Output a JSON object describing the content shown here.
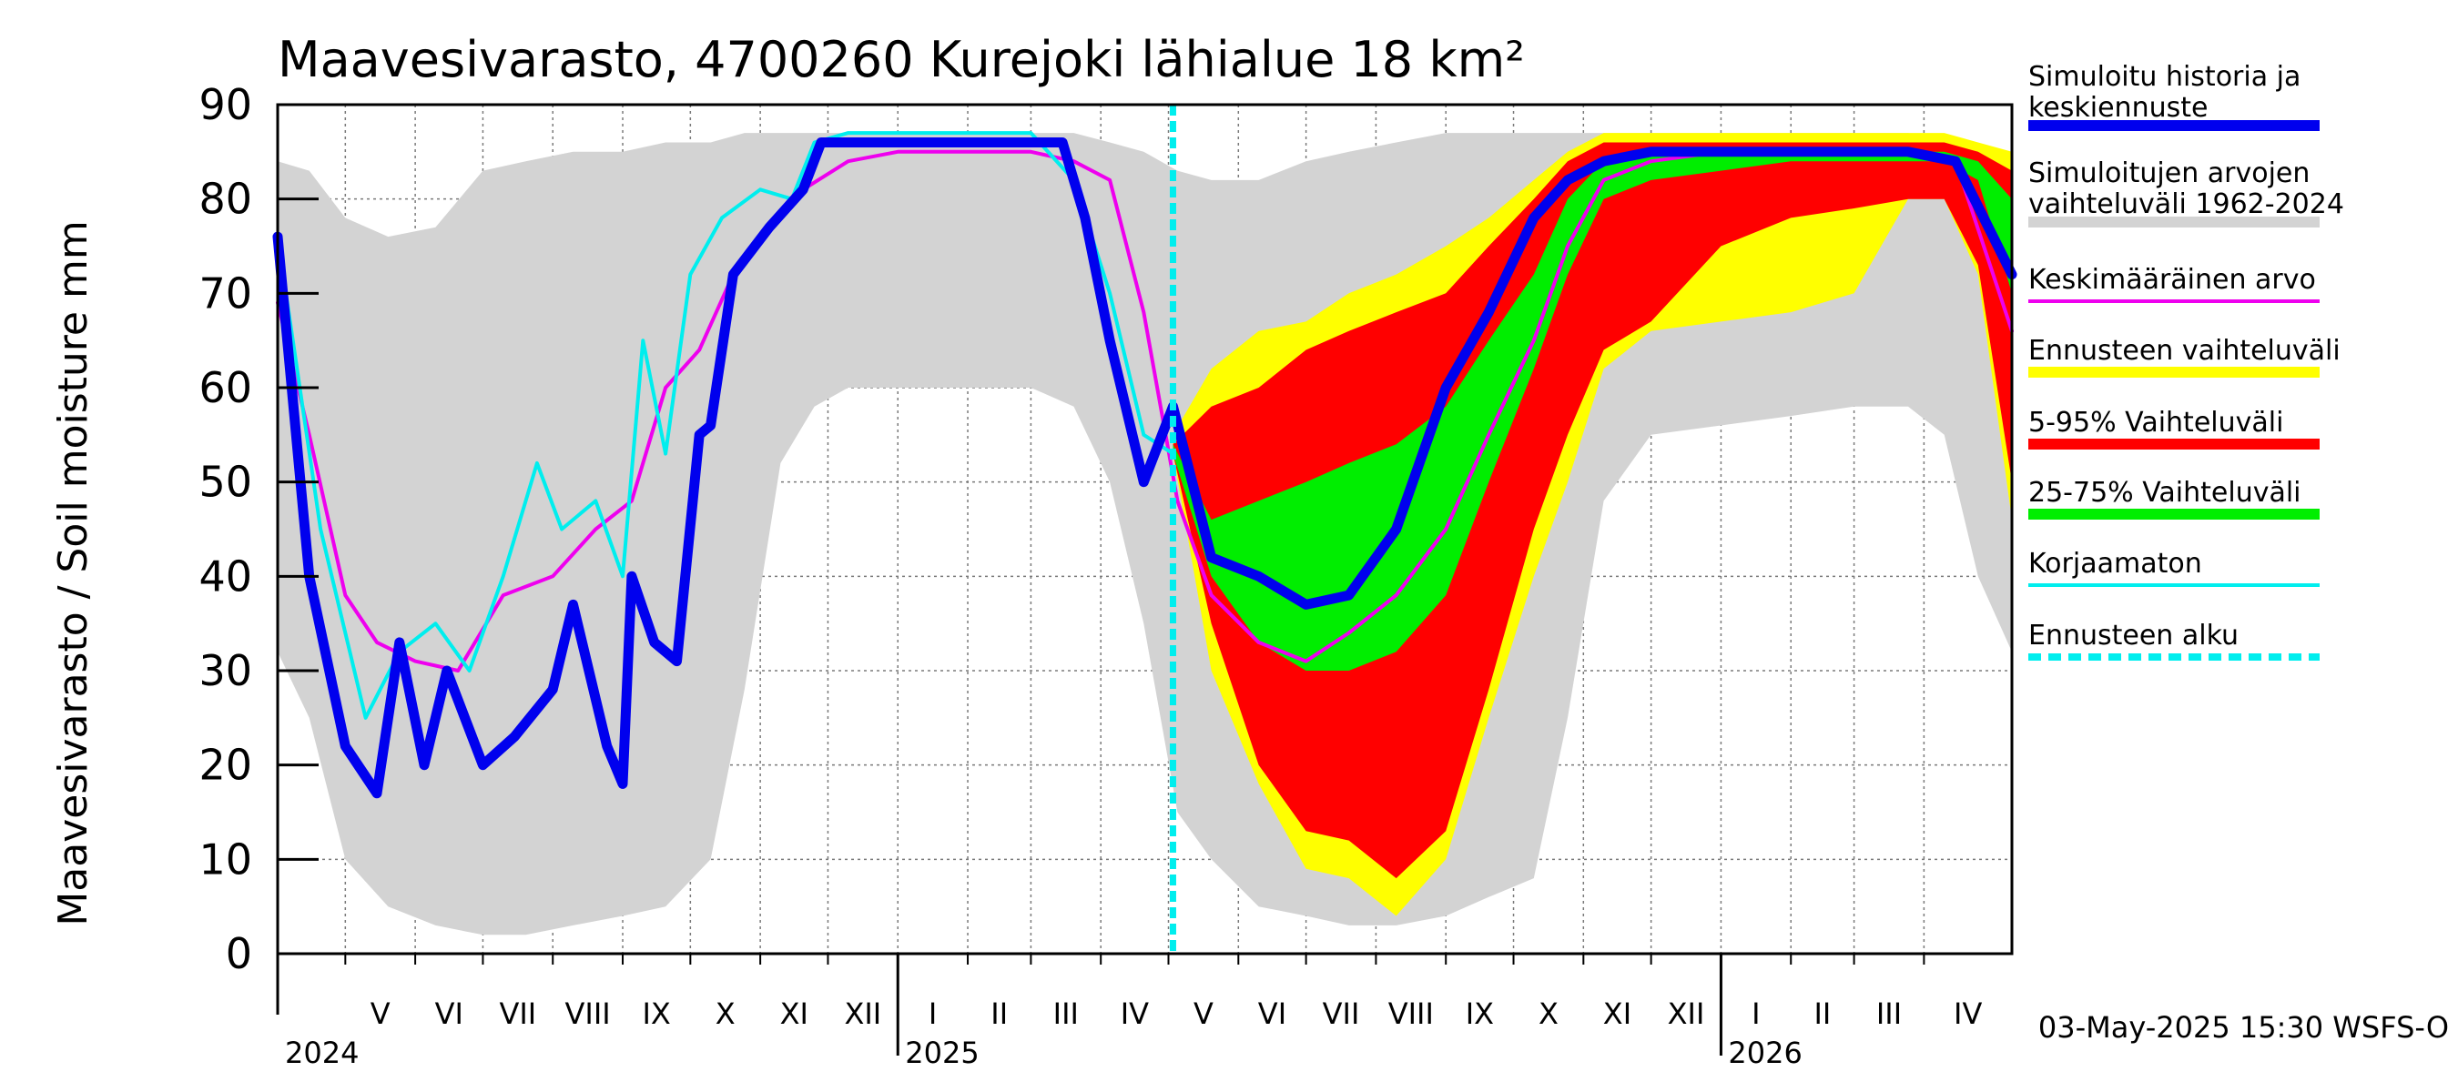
{
  "chart_data": {
    "type": "area",
    "title": "Maavesivarasto, 4700260 Kurejoki lähialue 18 km²",
    "ylabel": "Maavesivarasto / Soil moisture   mm",
    "ylim": [
      0,
      90
    ],
    "yticks": [
      0,
      10,
      20,
      30,
      40,
      50,
      60,
      70,
      80,
      90
    ],
    "xlim": [
      "2024-04-01",
      "2026-05-10"
    ],
    "grid": true,
    "legend_position": "right",
    "forecast_start": "2025-05-03",
    "timestamp": "03-May-2025 15:30 WSFS-O",
    "months": [
      {
        "label": "V",
        "start": "2024-05-01"
      },
      {
        "label": "VI",
        "start": "2024-06-01"
      },
      {
        "label": "VII",
        "start": "2024-07-01"
      },
      {
        "label": "VIII",
        "start": "2024-08-01"
      },
      {
        "label": "IX",
        "start": "2024-09-01"
      },
      {
        "label": "X",
        "start": "2024-10-01"
      },
      {
        "label": "XI",
        "start": "2024-11-01"
      },
      {
        "label": "XII",
        "start": "2024-12-01"
      },
      {
        "label": "I",
        "start": "2025-01-01"
      },
      {
        "label": "II",
        "start": "2025-02-01"
      },
      {
        "label": "III",
        "start": "2025-03-01"
      },
      {
        "label": "IV",
        "start": "2025-04-01"
      },
      {
        "label": "V",
        "start": "2025-05-01"
      },
      {
        "label": "VI",
        "start": "2025-06-01"
      },
      {
        "label": "VII",
        "start": "2025-07-01"
      },
      {
        "label": "VIII",
        "start": "2025-08-01"
      },
      {
        "label": "IX",
        "start": "2025-09-01"
      },
      {
        "label": "X",
        "start": "2025-10-01"
      },
      {
        "label": "XI",
        "start": "2025-11-01"
      },
      {
        "label": "XII",
        "start": "2025-12-01"
      },
      {
        "label": "I",
        "start": "2026-01-01"
      },
      {
        "label": "II",
        "start": "2026-02-01"
      },
      {
        "label": "III",
        "start": "2026-03-01"
      },
      {
        "label": "IV",
        "start": "2026-04-01"
      }
    ],
    "years": [
      {
        "label": "2024",
        "start": "2024-04-01"
      },
      {
        "label": "2025",
        "start": "2025-01-01"
      },
      {
        "label": "2026",
        "start": "2026-01-01"
      }
    ],
    "legend": [
      {
        "label": "Simuloitu historia ja keskiennuste",
        "color": "#0000ee",
        "style": "thick"
      },
      {
        "label": "Simuloitujen arvojen vaihteluväli 1962-2024",
        "color": "#d3d3d3",
        "style": "thick"
      },
      {
        "label": "Keskimääräinen arvo",
        "color": "#ee00ee",
        "style": "thin"
      },
      {
        "label": "Ennusteen vaihteluväli",
        "color": "#ffff00",
        "style": "thick"
      },
      {
        "label": "5-95% Vaihteluväli",
        "color": "#ff0000",
        "style": "thick"
      },
      {
        "label": "25-75% Vaihteluväli",
        "color": "#00ee00",
        "style": "thick"
      },
      {
        "label": "Korjaamaton",
        "color": "#00eeee",
        "style": "thin"
      },
      {
        "label": "Ennusteen alku",
        "color": "#00eeee",
        "style": "dashed"
      }
    ],
    "series": [
      {
        "name": "Simuloitujen arvojen vaihteluväli 1962-2024",
        "kind": "band",
        "color": "#d3d3d3",
        "x": [
          "2024-04-01",
          "2024-04-15",
          "2024-05-01",
          "2024-05-20",
          "2024-06-10",
          "2024-07-01",
          "2024-07-20",
          "2024-08-10",
          "2024-09-01",
          "2024-09-20",
          "2024-10-10",
          "2024-10-25",
          "2024-11-10",
          "2024-11-25",
          "2024-12-10",
          "2025-01-01",
          "2025-02-01",
          "2025-03-01",
          "2025-03-20",
          "2025-04-05",
          "2025-04-20",
          "2025-05-05",
          "2025-05-20",
          "2025-06-10",
          "2025-07-01",
          "2025-07-20",
          "2025-08-10",
          "2025-09-01",
          "2025-09-20",
          "2025-10-10",
          "2025-10-25",
          "2025-11-10",
          "2025-12-01",
          "2026-01-01",
          "2026-02-01",
          "2026-03-01",
          "2026-03-25",
          "2026-04-10",
          "2026-04-25",
          "2026-05-10"
        ],
        "low": [
          32,
          25,
          10,
          5,
          3,
          2,
          2,
          3,
          4,
          5,
          10,
          28,
          52,
          58,
          60,
          60,
          60,
          60,
          58,
          50,
          35,
          15,
          10,
          5,
          4,
          3,
          3,
          4,
          6,
          8,
          25,
          48,
          55,
          56,
          57,
          58,
          58,
          55,
          40,
          32
        ],
        "high": [
          84,
          83,
          78,
          76,
          77,
          83,
          84,
          85,
          85,
          86,
          86,
          87,
          87,
          87,
          87,
          87,
          87,
          87,
          87,
          86,
          85,
          83,
          82,
          82,
          84,
          85,
          86,
          87,
          87,
          87,
          87,
          87,
          87,
          87,
          87,
          87,
          87,
          86,
          84,
          83
        ]
      },
      {
        "name": "Ennusteen vaihteluväli",
        "kind": "band",
        "color": "#ffff00",
        "x": [
          "2025-05-03",
          "2025-05-20",
          "2025-06-10",
          "2025-07-01",
          "2025-07-20",
          "2025-08-10",
          "2025-09-01",
          "2025-09-20",
          "2025-10-10",
          "2025-10-25",
          "2025-11-10",
          "2025-12-01",
          "2026-01-01",
          "2026-02-01",
          "2026-03-01",
          "2026-03-25",
          "2026-04-10",
          "2026-04-25",
          "2026-05-10"
        ],
        "low": [
          53,
          30,
          18,
          9,
          8,
          4,
          10,
          25,
          40,
          50,
          62,
          66,
          67,
          68,
          70,
          80,
          80,
          72,
          46
        ],
        "high": [
          55,
          62,
          66,
          67,
          70,
          72,
          75,
          78,
          82,
          85,
          87,
          87,
          87,
          87,
          87,
          87,
          87,
          86,
          85
        ]
      },
      {
        "name": "5-95% Vaihteluväli",
        "kind": "band",
        "color": "#ff0000",
        "x": [
          "2025-05-03",
          "2025-05-20",
          "2025-06-10",
          "2025-07-01",
          "2025-07-20",
          "2025-08-10",
          "2025-09-01",
          "2025-09-20",
          "2025-10-10",
          "2025-10-25",
          "2025-11-10",
          "2025-12-01",
          "2026-01-01",
          "2026-02-01",
          "2026-03-01",
          "2026-03-25",
          "2026-04-10",
          "2026-04-25",
          "2026-05-10"
        ],
        "low": [
          53,
          35,
          20,
          13,
          12,
          8,
          13,
          28,
          45,
          55,
          64,
          67,
          75,
          78,
          79,
          80,
          80,
          73,
          50
        ],
        "high": [
          54,
          58,
          60,
          64,
          66,
          68,
          70,
          75,
          80,
          84,
          86,
          86,
          86,
          86,
          86,
          86,
          86,
          85,
          83
        ]
      },
      {
        "name": "25-75% Vaihteluväli",
        "kind": "band",
        "color": "#00ee00",
        "x": [
          "2025-05-03",
          "2025-05-20",
          "2025-06-10",
          "2025-07-01",
          "2025-07-20",
          "2025-08-10",
          "2025-09-01",
          "2025-09-20",
          "2025-10-10",
          "2025-10-25",
          "2025-11-10",
          "2025-12-01",
          "2026-01-01",
          "2026-02-01",
          "2026-03-01",
          "2026-03-25",
          "2026-04-10",
          "2026-04-25",
          "2026-05-10"
        ],
        "low": [
          53,
          40,
          33,
          30,
          30,
          32,
          38,
          50,
          62,
          72,
          80,
          82,
          83,
          84,
          84,
          84,
          84,
          82,
          70
        ],
        "high": [
          54,
          46,
          48,
          50,
          52,
          54,
          58,
          65,
          72,
          80,
          84,
          85,
          85,
          85,
          85,
          85,
          85,
          84,
          80
        ]
      },
      {
        "name": "Keskimääräinen arvo",
        "kind": "line",
        "color": "#ee00ee",
        "x": [
          "2024-04-01",
          "2024-04-15",
          "2024-05-01",
          "2024-05-15",
          "2024-06-01",
          "2024-06-20",
          "2024-07-10",
          "2024-08-01",
          "2024-08-20",
          "2024-09-05",
          "2024-09-20",
          "2024-10-05",
          "2024-10-20",
          "2024-11-05",
          "2024-11-20",
          "2024-12-10",
          "2025-01-01",
          "2025-02-01",
          "2025-03-01",
          "2025-03-20",
          "2025-04-05",
          "2025-04-20",
          "2025-05-05",
          "2025-05-20",
          "2025-06-10",
          "2025-07-01",
          "2025-07-20",
          "2025-08-10",
          "2025-09-01",
          "2025-09-20",
          "2025-10-10",
          "2025-10-25",
          "2025-11-10",
          "2025-12-01",
          "2026-01-01",
          "2026-02-01",
          "2026-03-01",
          "2026-03-25",
          "2026-04-15",
          "2026-05-10"
        ],
        "y": [
          69,
          55,
          38,
          33,
          31,
          30,
          38,
          40,
          45,
          48,
          60,
          64,
          72,
          77,
          81,
          84,
          85,
          85,
          85,
          84,
          82,
          68,
          48,
          38,
          33,
          31,
          34,
          38,
          45,
          55,
          65,
          75,
          82,
          84,
          85,
          85,
          85,
          85,
          84,
          66
        ]
      },
      {
        "name": "Korjaamaton",
        "kind": "line",
        "color": "#00eeee",
        "x": [
          "2024-04-01",
          "2024-04-20",
          "2024-05-10",
          "2024-05-25",
          "2024-06-10",
          "2024-06-25",
          "2024-07-10",
          "2024-07-25",
          "2024-08-05",
          "2024-08-20",
          "2024-09-01",
          "2024-09-10",
          "2024-09-20",
          "2024-10-01",
          "2024-10-15",
          "2024-11-01",
          "2024-11-15",
          "2024-11-25",
          "2024-12-10",
          "2025-01-01",
          "2025-02-01",
          "2025-03-01",
          "2025-03-20",
          "2025-04-05",
          "2025-04-20",
          "2025-05-03"
        ],
        "y": [
          76,
          45,
          25,
          32,
          35,
          30,
          40,
          52,
          45,
          48,
          40,
          65,
          53,
          72,
          78,
          81,
          80,
          86,
          87,
          87,
          87,
          87,
          82,
          70,
          55,
          53
        ]
      },
      {
        "name": "Simuloitu historia ja keskiennuste",
        "kind": "line",
        "color": "#0000ee",
        "x": [
          "2024-04-01",
          "2024-04-15",
          "2024-05-01",
          "2024-05-15",
          "2024-05-25",
          "2024-06-05",
          "2024-06-15",
          "2024-07-01",
          "2024-07-15",
          "2024-08-01",
          "2024-08-10",
          "2024-08-25",
          "2024-09-01",
          "2024-09-05",
          "2024-09-15",
          "2024-09-25",
          "2024-10-05",
          "2024-10-10",
          "2024-10-20",
          "2024-11-05",
          "2024-11-20",
          "2024-11-28",
          "2024-12-10",
          "2025-01-01",
          "2025-02-01",
          "2025-03-01",
          "2025-03-15",
          "2025-03-25",
          "2025-04-05",
          "2025-04-20",
          "2025-05-03",
          "2025-05-20",
          "2025-06-10",
          "2025-07-01",
          "2025-07-20",
          "2025-08-10",
          "2025-09-01",
          "2025-09-20",
          "2025-10-10",
          "2025-10-25",
          "2025-11-10",
          "2025-12-01",
          "2026-01-01",
          "2026-02-01",
          "2026-03-01",
          "2026-03-25",
          "2026-04-15",
          "2026-05-10"
        ],
        "y": [
          76,
          40,
          22,
          17,
          33,
          20,
          30,
          20,
          23,
          28,
          37,
          22,
          18,
          40,
          33,
          31,
          55,
          56,
          72,
          77,
          81,
          86,
          86,
          86,
          86,
          86,
          86,
          78,
          65,
          50,
          58,
          42,
          40,
          37,
          38,
          45,
          60,
          68,
          78,
          82,
          84,
          85,
          85,
          85,
          85,
          85,
          84,
          72
        ]
      }
    ]
  }
}
